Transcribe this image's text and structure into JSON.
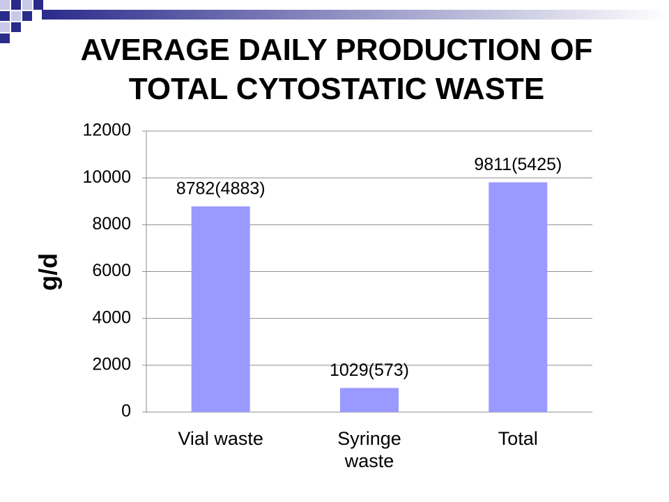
{
  "chart_data": {
    "type": "bar",
    "title": "AVERAGE DAILY PRODUCTION OF TOTAL CYTOSTATIC WASTE",
    "y_label": "g/d",
    "categories": [
      "Vial waste",
      "Syringe waste",
      "Total"
    ],
    "values": [
      8782,
      1029,
      9811
    ],
    "value_labels": [
      "8782(4883)",
      "1029(573)",
      "9811(5425)"
    ],
    "color": "#9999ff",
    "ylim": [
      0,
      12000
    ],
    "yticks": [
      0,
      2000,
      4000,
      6000,
      8000,
      10000,
      12000
    ],
    "grid": true
  }
}
